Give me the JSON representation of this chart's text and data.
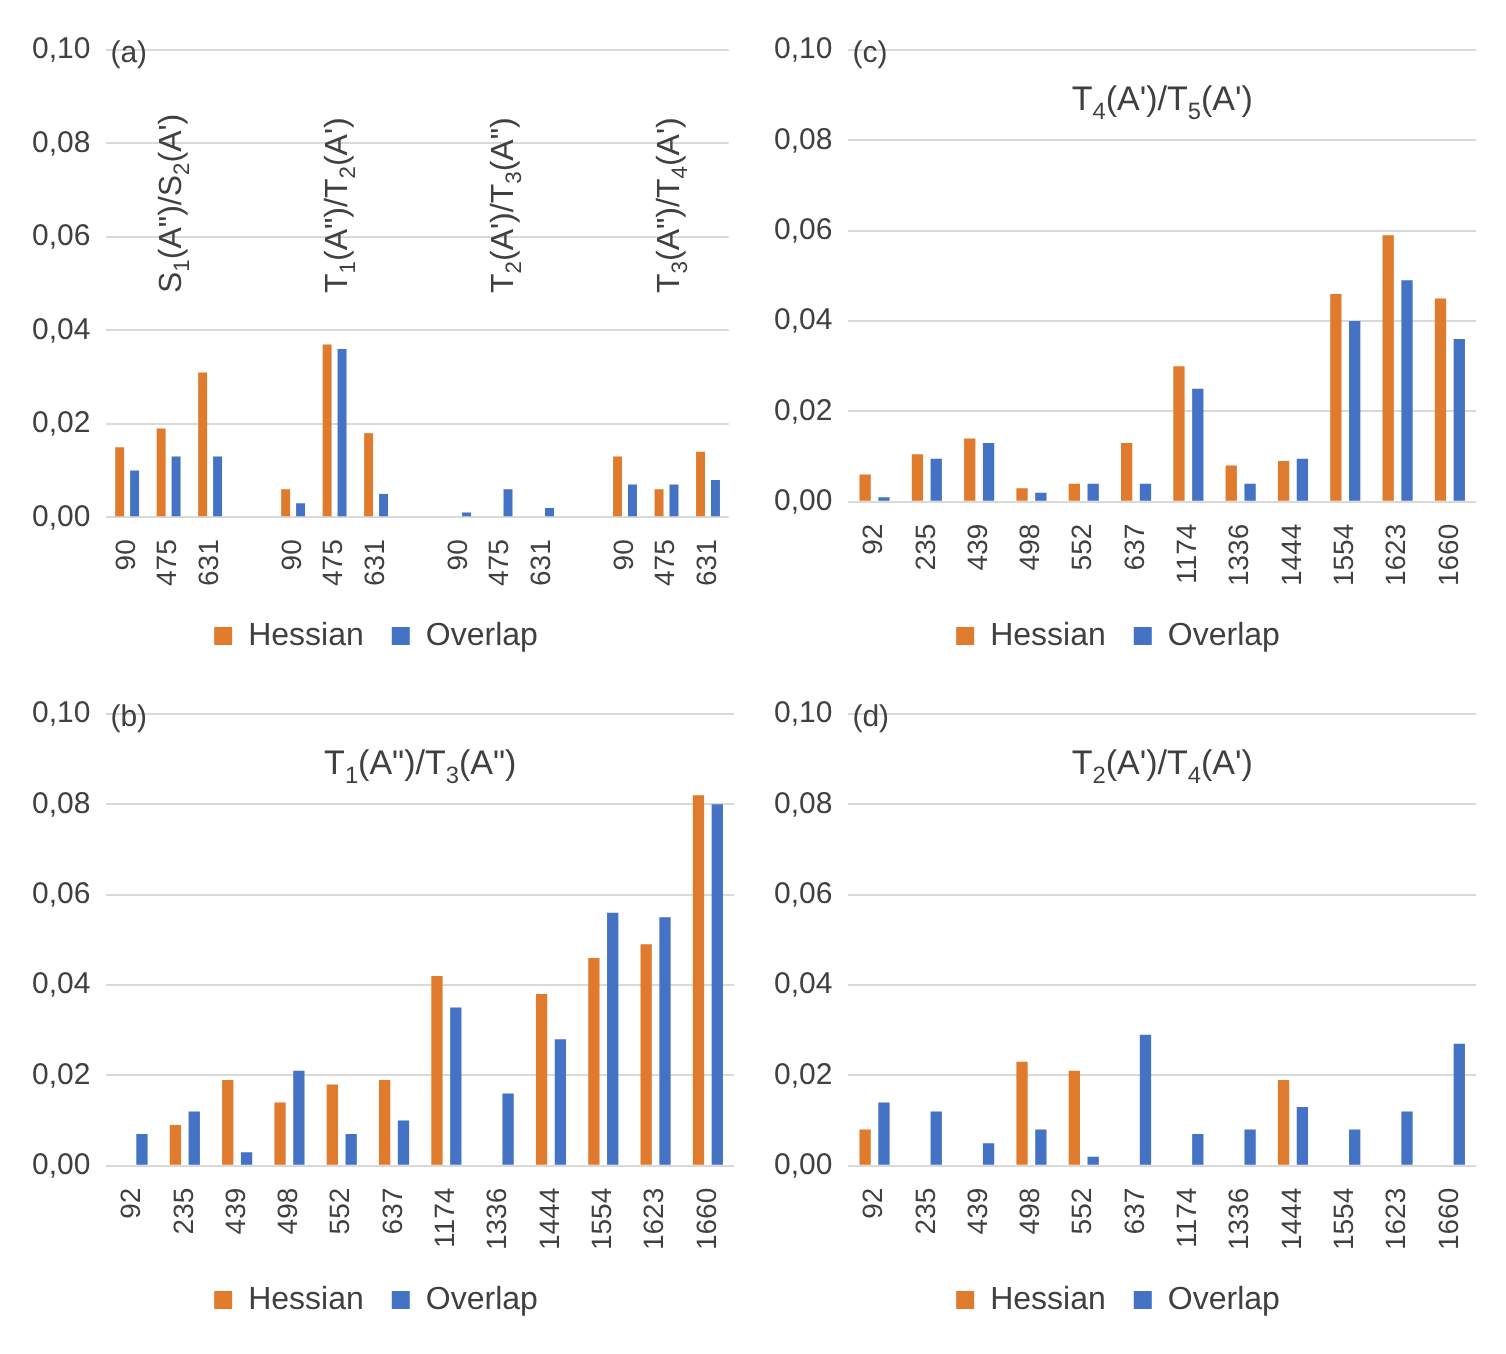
{
  "chart_data": [
    {
      "type": "bar",
      "annotations": [
        "(a)",
        "S$_{1}$(A\")/S$_{2}$(A')",
        "T$_{1}$(A\")/T$_{2}$(A')",
        "T$_{2}$(A')/T$_{3}$(A\")",
        "T$_{3}$(A\")/T$_{4}$(A')"
      ],
      "categories": [
        "90",
        "475",
        "631",
        null,
        "90",
        "475",
        "631",
        null,
        "90",
        "475",
        "631",
        null,
        "90",
        "475",
        "631"
      ],
      "series": [
        {
          "name": "Hessian",
          "color": "#e07b2e",
          "values": [
            0.015,
            0.019,
            0.031,
            null,
            0.006,
            0.037,
            0.018,
            null,
            null,
            null,
            null,
            null,
            0.013,
            0.006,
            0.014
          ]
        },
        {
          "name": "Overlap",
          "color": "#4472c4",
          "values": [
            0.01,
            0.013,
            0.013,
            null,
            0.003,
            0.036,
            0.005,
            null,
            0.001,
            0.006,
            0.002,
            null,
            0.007,
            0.007,
            0.008
          ]
        }
      ],
      "ylim": [
        0,
        0.1
      ],
      "yticks": [
        {
          "value": 0,
          "label": "0,00"
        },
        {
          "value": 0.02,
          "label": "0,02"
        },
        {
          "value": 0.04,
          "label": "0,04"
        },
        {
          "value": 0.06,
          "label": "0,06"
        },
        {
          "value": 0.08,
          "label": "0,08"
        },
        {
          "value": 0.1,
          "label": "0,10"
        }
      ],
      "grid": "y",
      "legend": "bottom"
    },
    {
      "type": "bar",
      "title": "T$_{4}$(A')/T$_{5}$(A')",
      "annotations": [
        "(c)"
      ],
      "categories": [
        "92",
        "235",
        "439",
        "498",
        "552",
        "637",
        "1174",
        "1336",
        "1444",
        "1554",
        "1623",
        "1660"
      ],
      "series": [
        {
          "name": "Hessian",
          "color": "#e07b2e",
          "values": [
            0.006,
            0.0105,
            0.014,
            0.003,
            0.004,
            0.013,
            0.03,
            0.008,
            0.009,
            0.046,
            0.059,
            0.045
          ]
        },
        {
          "name": "Overlap",
          "color": "#4472c4",
          "values": [
            0.001,
            0.0095,
            0.013,
            0.002,
            0.004,
            0.004,
            0.025,
            0.004,
            0.0095,
            0.04,
            0.049,
            0.036
          ]
        }
      ],
      "ylim": [
        0,
        0.1
      ],
      "yticks": [
        {
          "value": 0,
          "label": "0,00"
        },
        {
          "value": 0.02,
          "label": "0,02"
        },
        {
          "value": 0.04,
          "label": "0,04"
        },
        {
          "value": 0.06,
          "label": "0,06"
        },
        {
          "value": 0.08,
          "label": "0,08"
        },
        {
          "value": 0.1,
          "label": "0,10"
        }
      ],
      "grid": "y",
      "legend": "bottom"
    },
    {
      "type": "bar",
      "title": "T$_{1}$(A\")/T$_{3}$(A\")",
      "annotations": [
        "(b)"
      ],
      "categories": [
        "92",
        "235",
        "439",
        "498",
        "552",
        "637",
        "1174",
        "1336",
        "1444",
        "1554",
        "1623",
        "1660"
      ],
      "series": [
        {
          "name": "Hessian",
          "color": "#e07b2e",
          "values": [
            null,
            0.009,
            0.019,
            0.014,
            0.018,
            0.019,
            0.042,
            null,
            0.038,
            0.046,
            0.049,
            0.082
          ]
        },
        {
          "name": "Overlap",
          "color": "#4472c4",
          "values": [
            0.007,
            0.012,
            0.003,
            0.021,
            0.007,
            0.01,
            0.035,
            0.016,
            0.028,
            0.056,
            0.055,
            0.08
          ]
        }
      ],
      "ylim": [
        0,
        0.1
      ],
      "yticks": [
        {
          "value": 0,
          "label": "0,00"
        },
        {
          "value": 0.02,
          "label": "0,02"
        },
        {
          "value": 0.04,
          "label": "0,04"
        },
        {
          "value": 0.06,
          "label": "0,06"
        },
        {
          "value": 0.08,
          "label": "0,08"
        },
        {
          "value": 0.1,
          "label": "0,10"
        }
      ],
      "grid": "y",
      "legend": "bottom"
    },
    {
      "type": "bar",
      "title": "T$_{2}$(A')/T$_{4}$(A')",
      "annotations": [
        "(d)"
      ],
      "categories": [
        "92",
        "235",
        "439",
        "498",
        "552",
        "637",
        "1174",
        "1336",
        "1444",
        "1554",
        "1623",
        "1660"
      ],
      "series": [
        {
          "name": "Hessian",
          "color": "#e07b2e",
          "values": [
            0.008,
            null,
            null,
            0.023,
            0.021,
            null,
            null,
            null,
            0.019,
            null,
            null,
            null
          ]
        },
        {
          "name": "Overlap",
          "color": "#4472c4",
          "values": [
            0.014,
            0.012,
            0.005,
            0.008,
            0.002,
            0.029,
            0.007,
            0.008,
            0.013,
            0.008,
            0.012,
            0.027
          ]
        }
      ],
      "ylim": [
        0,
        0.1
      ],
      "yticks": [
        {
          "value": 0,
          "label": "0,00"
        },
        {
          "value": 0.02,
          "label": "0,02"
        },
        {
          "value": 0.04,
          "label": "0,04"
        },
        {
          "value": 0.06,
          "label": "0,06"
        },
        {
          "value": 0.08,
          "label": "0,08"
        },
        {
          "value": 0.1,
          "label": "0,10"
        }
      ],
      "grid": "y",
      "legend": "bottom"
    }
  ]
}
